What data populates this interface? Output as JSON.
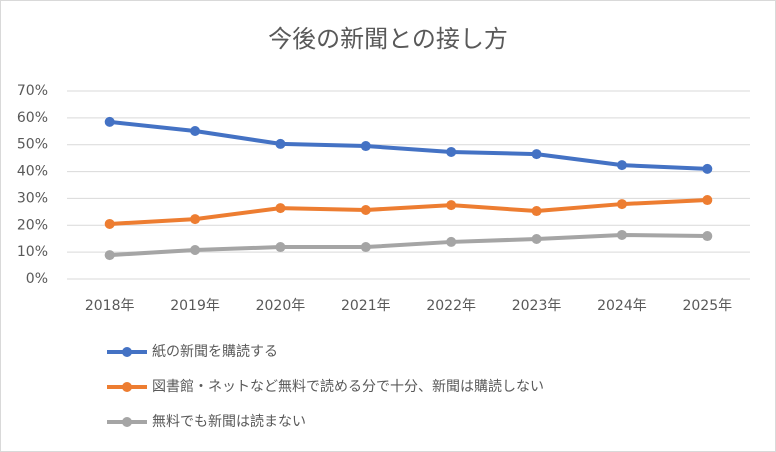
{
  "chart_data": {
    "type": "line",
    "title": "今後の新聞との接し方",
    "categories": [
      "2018年",
      "2019年",
      "2020年",
      "2021年",
      "2022年",
      "2023年",
      "2024年",
      "2025年"
    ],
    "series": [
      {
        "name": "紙の新聞を購読する",
        "color": "#4472c4",
        "values": [
          58.5,
          55.1,
          50.3,
          49.5,
          47.3,
          46.5,
          42.4,
          41.0
        ]
      },
      {
        "name": "図書館・ネットなど無料で読める分で十分、新聞は購読しない",
        "color": "#ed7d31",
        "values": [
          20.5,
          22.3,
          26.4,
          25.7,
          27.5,
          25.3,
          27.9,
          29.4
        ]
      },
      {
        "name": "無料でも新聞は読まない",
        "color": "#a5a5a5",
        "values": [
          8.9,
          10.8,
          11.9,
          11.9,
          13.8,
          14.9,
          16.4,
          16.0
        ]
      }
    ],
    "ylim": [
      0,
      70
    ],
    "yticks": [
      {
        "value": 0,
        "label": "0%"
      },
      {
        "value": 10,
        "label": "10%"
      },
      {
        "value": 20,
        "label": "20%"
      },
      {
        "value": 30,
        "label": "30%"
      },
      {
        "value": 40,
        "label": "40%"
      },
      {
        "value": 50,
        "label": "50%"
      },
      {
        "value": 60,
        "label": "60%"
      },
      {
        "value": 70,
        "label": "70%"
      }
    ],
    "grid": true,
    "legend": "bottom"
  }
}
